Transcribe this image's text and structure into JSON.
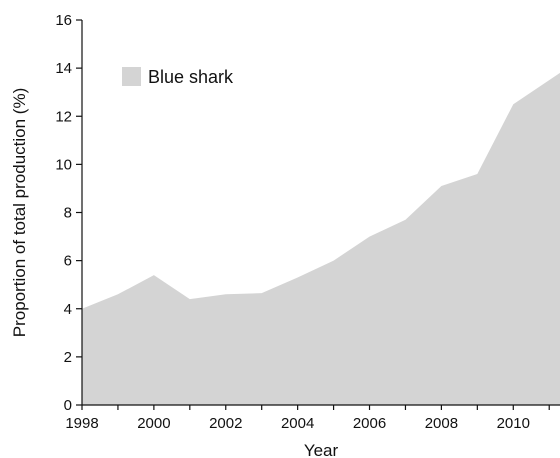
{
  "chart_data": {
    "type": "area",
    "xlabel": "Year",
    "ylabel": "Proportion of total production (%)",
    "xlim": [
      1998,
      2011.3
    ],
    "ylim": [
      0,
      16
    ],
    "x_ticks": [
      1998,
      2000,
      2002,
      2004,
      2006,
      2008,
      2010
    ],
    "y_ticks": [
      0,
      2,
      4,
      6,
      8,
      10,
      12,
      14,
      16
    ],
    "grid": false,
    "legend_position": "top-left",
    "series": [
      {
        "name": "Blue shark",
        "color": "#d4d4d4",
        "x": [
          1998,
          1999,
          2000,
          2001,
          2002,
          2003,
          2004,
          2005,
          2006,
          2007,
          2008,
          2009,
          2010,
          2011.3
        ],
        "values": [
          4.0,
          4.6,
          5.4,
          4.4,
          4.6,
          4.65,
          5.3,
          6.0,
          7.0,
          7.7,
          9.1,
          9.6,
          12.5,
          13.8
        ]
      }
    ]
  }
}
